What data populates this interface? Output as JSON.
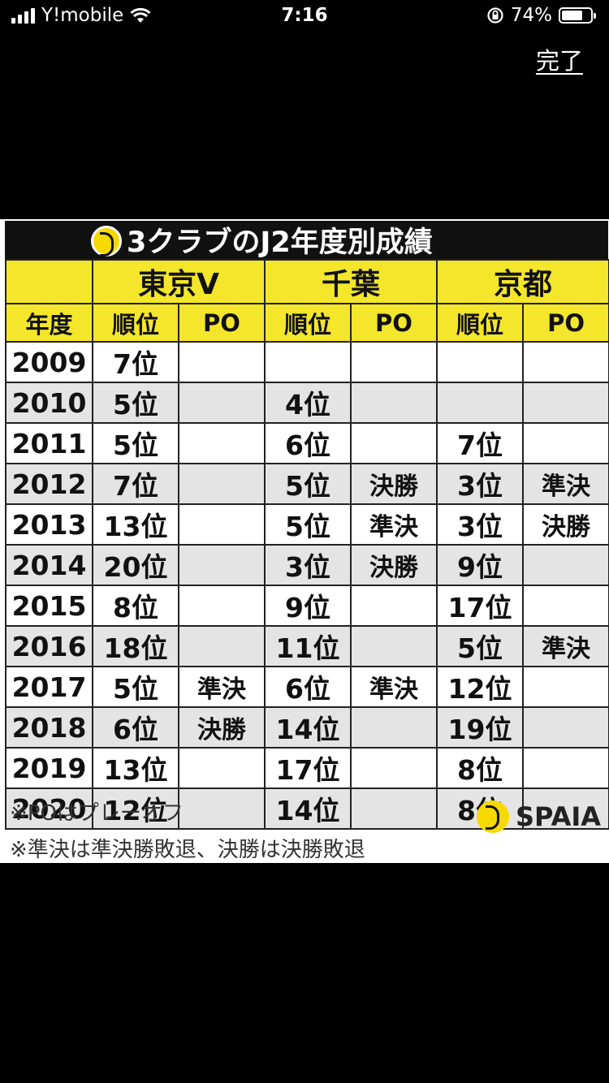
{
  "status": {
    "carrier": "Y!mobile",
    "time": "7:16",
    "battery": "74%",
    "battery_level": 0.74
  },
  "toolbar": {
    "done_label": "完了"
  },
  "image": {
    "title": "3クラブのJ2年度別成績",
    "clubs": [
      "東京V",
      "千葉",
      "京都"
    ],
    "headers": [
      "年度",
      "順位",
      "PO",
      "順位",
      "PO",
      "順位",
      "PO"
    ],
    "rows": [
      [
        "2009",
        "7位",
        "",
        "",
        "",
        "",
        ""
      ],
      [
        "2010",
        "5位",
        "",
        "4位",
        "",
        "",
        ""
      ],
      [
        "2011",
        "5位",
        "",
        "6位",
        "",
        "7位",
        ""
      ],
      [
        "2012",
        "7位",
        "",
        "5位",
        "決勝",
        "3位",
        "準決"
      ],
      [
        "2013",
        "13位",
        "",
        "5位",
        "準決",
        "3位",
        "決勝"
      ],
      [
        "2014",
        "20位",
        "",
        "3位",
        "決勝",
        "9位",
        ""
      ],
      [
        "2015",
        "8位",
        "",
        "9位",
        "",
        "17位",
        ""
      ],
      [
        "2016",
        "18位",
        "",
        "11位",
        "",
        "5位",
        "準決"
      ],
      [
        "2017",
        "5位",
        "準決",
        "6位",
        "準決",
        "12位",
        ""
      ],
      [
        "2018",
        "6位",
        "決勝",
        "14位",
        "",
        "19位",
        ""
      ],
      [
        "2019",
        "13位",
        "",
        "17位",
        "",
        "8位",
        ""
      ],
      [
        "2020",
        "12位",
        "",
        "14位",
        "",
        "8位",
        ""
      ]
    ],
    "notes": [
      "※POはプレーオフ",
      "※準決は準決勝敗退、決勝は決勝敗退"
    ],
    "brand": "SPAIA",
    "colors": {
      "header_yellow": "#f4e62a",
      "title_bar": "#111111",
      "stripe": "#e4e4e4"
    }
  }
}
